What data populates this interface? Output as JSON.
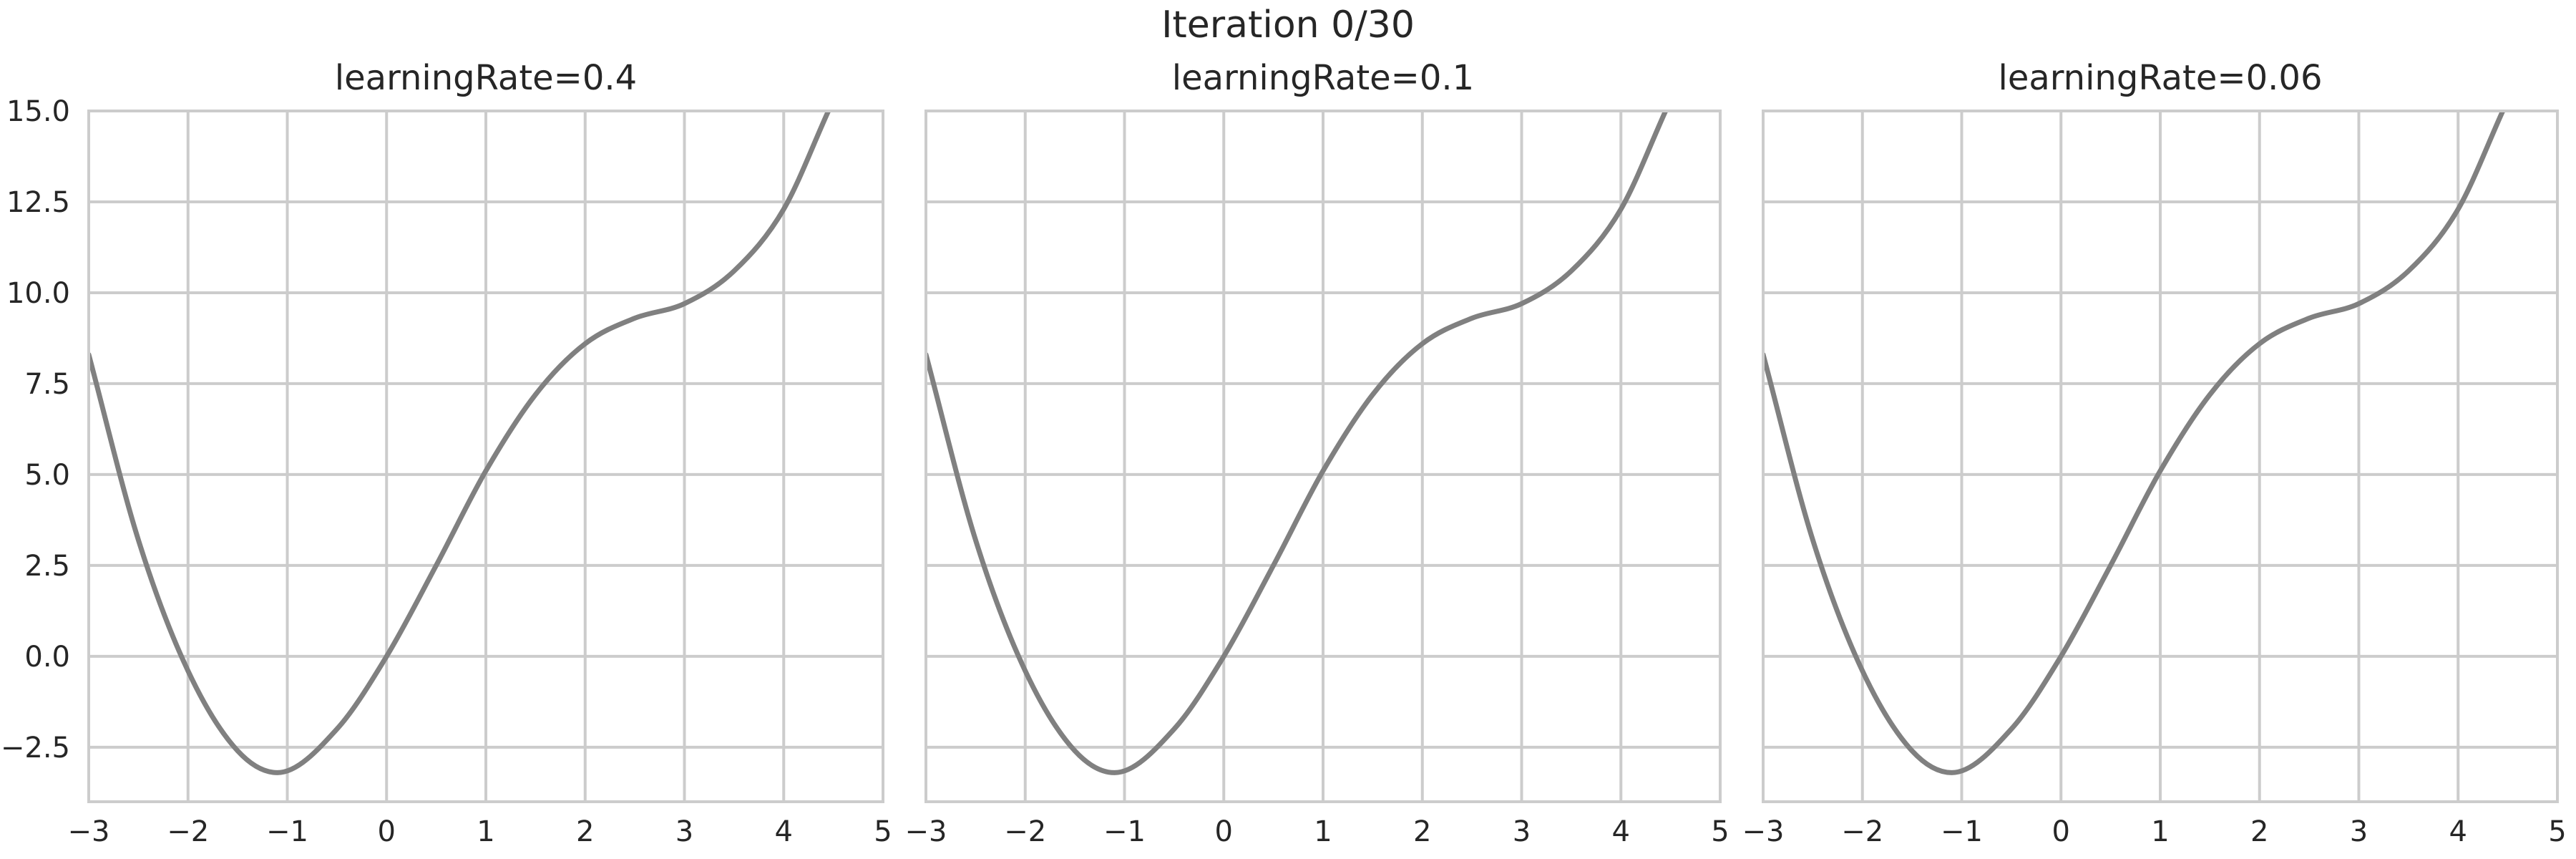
{
  "figure": {
    "suptitle": "Iteration 0/30"
  },
  "chart_data": [
    {
      "type": "line",
      "title": "learningRate=0.4",
      "xlabel": "",
      "ylabel": "",
      "xlim": [
        -3,
        5
      ],
      "ylim": [
        -4,
        15
      ],
      "xticks": [
        -3,
        -2,
        -1,
        0,
        1,
        2,
        3,
        4,
        5
      ],
      "yticks": [
        -2.5,
        0.0,
        2.5,
        5.0,
        7.5,
        10.0,
        12.5,
        15.0
      ],
      "xtick_labels": [
        "−3",
        "−2",
        "−1",
        "0",
        "1",
        "2",
        "3",
        "4",
        "5"
      ],
      "ytick_labels": [
        "−2.5",
        "0.0",
        "2.5",
        "5.0",
        "7.5",
        "10.0",
        "12.5",
        "15.0"
      ],
      "grid": true,
      "series": [
        {
          "color": "#808080",
          "x": [
            -3.0,
            -2.5,
            -2.0,
            -1.5,
            -1.1,
            -0.5,
            0.0,
            0.5,
            1.0,
            1.5,
            2.0,
            2.5,
            3.0,
            3.5,
            4.0,
            4.45
          ],
          "y": [
            8.3,
            3.2,
            -0.4,
            -2.6,
            -3.2,
            -2.0,
            0.0,
            2.5,
            5.1,
            7.2,
            8.6,
            9.3,
            9.7,
            10.6,
            12.3,
            15.0
          ]
        }
      ]
    },
    {
      "type": "line",
      "title": "learningRate=0.1",
      "xlabel": "",
      "ylabel": "",
      "xlim": [
        -3,
        5
      ],
      "ylim": [
        -4,
        15
      ],
      "xticks": [
        -3,
        -2,
        -1,
        0,
        1,
        2,
        3,
        4,
        5
      ],
      "yticks": [
        -2.5,
        0.0,
        2.5,
        5.0,
        7.5,
        10.0,
        12.5,
        15.0
      ],
      "xtick_labels": [
        "−3",
        "−2",
        "−1",
        "0",
        "1",
        "2",
        "3",
        "4",
        "5"
      ],
      "ytick_labels": [],
      "grid": true,
      "series": [
        {
          "color": "#808080",
          "x": [
            -3.0,
            -2.5,
            -2.0,
            -1.5,
            -1.1,
            -0.5,
            0.0,
            0.5,
            1.0,
            1.5,
            2.0,
            2.5,
            3.0,
            3.5,
            4.0,
            4.45
          ],
          "y": [
            8.3,
            3.2,
            -0.4,
            -2.6,
            -3.2,
            -2.0,
            0.0,
            2.5,
            5.1,
            7.2,
            8.6,
            9.3,
            9.7,
            10.6,
            12.3,
            15.0
          ]
        }
      ]
    },
    {
      "type": "line",
      "title": "learningRate=0.06",
      "xlabel": "",
      "ylabel": "",
      "xlim": [
        -3,
        5
      ],
      "ylim": [
        -4,
        15
      ],
      "xticks": [
        -3,
        -2,
        -1,
        0,
        1,
        2,
        3,
        4,
        5
      ],
      "yticks": [
        -2.5,
        0.0,
        2.5,
        5.0,
        7.5,
        10.0,
        12.5,
        15.0
      ],
      "xtick_labels": [
        "−3",
        "−2",
        "−1",
        "0",
        "1",
        "2",
        "3",
        "4",
        "5"
      ],
      "ytick_labels": [],
      "grid": true,
      "series": [
        {
          "color": "#808080",
          "x": [
            -3.0,
            -2.5,
            -2.0,
            -1.5,
            -1.1,
            -0.5,
            0.0,
            0.5,
            1.0,
            1.5,
            2.0,
            2.5,
            3.0,
            3.5,
            4.0,
            4.45
          ],
          "y": [
            8.3,
            3.2,
            -0.4,
            -2.6,
            -3.2,
            -2.0,
            0.0,
            2.5,
            5.1,
            7.2,
            8.6,
            9.3,
            9.7,
            10.6,
            12.3,
            15.0
          ]
        }
      ]
    }
  ]
}
